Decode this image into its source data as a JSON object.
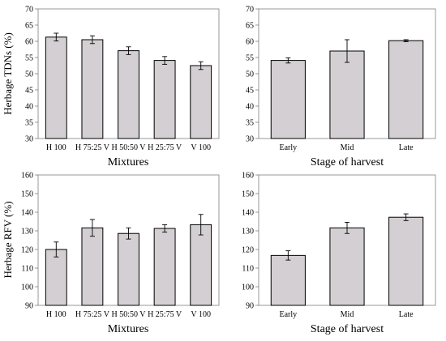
{
  "chart_data": [
    {
      "type": "bar",
      "xlabel": "Mixtures",
      "ylabel": "Herbage TDNs (%)",
      "categories": [
        "H 100",
        "H 75:25 V",
        "H 50:50 V",
        "H 25:75 V",
        "V 100"
      ],
      "values": [
        61.3,
        60.5,
        57.1,
        54.1,
        52.5
      ],
      "errors": [
        1.2,
        1.2,
        1.2,
        1.2,
        1.2
      ],
      "ylim": [
        30,
        70
      ],
      "yticks": [
        30,
        35,
        40,
        45,
        50,
        55,
        60,
        65,
        70
      ],
      "bar_color": "#d4cfd2",
      "grid": false
    },
    {
      "type": "bar",
      "xlabel": "Stage of harvest",
      "ylabel": "",
      "categories": [
        "Early",
        "Mid",
        "Late"
      ],
      "values": [
        54.1,
        57.0,
        60.2
      ],
      "errors": [
        0.8,
        3.5,
        0.3
      ],
      "ylim": [
        30,
        70
      ],
      "yticks": [
        30,
        35,
        40,
        45,
        50,
        55,
        60,
        65,
        70
      ],
      "bar_color": "#d4cfd2",
      "grid": false
    },
    {
      "type": "bar",
      "xlabel": "Mixtures",
      "ylabel": "Herbage RFV (%)",
      "categories": [
        "H 100",
        "H 75:25 V",
        "H 50:50 V",
        "H 25:75 V",
        "V 100"
      ],
      "values": [
        120.0,
        131.6,
        128.6,
        131.3,
        133.3
      ],
      "errors": [
        4.0,
        4.5,
        3.0,
        2.0,
        5.5
      ],
      "ylim": [
        90,
        160
      ],
      "yticks": [
        90,
        100,
        110,
        120,
        130,
        140,
        150,
        160
      ],
      "bar_color": "#d4cfd2",
      "grid": false
    },
    {
      "type": "bar",
      "xlabel": "Stage of harvest",
      "ylabel": "",
      "categories": [
        "Early",
        "Mid",
        "Late"
      ],
      "values": [
        116.8,
        131.6,
        137.3
      ],
      "errors": [
        2.5,
        3.0,
        1.8
      ],
      "ylim": [
        90,
        160
      ],
      "yticks": [
        90,
        100,
        110,
        120,
        130,
        140,
        150,
        160
      ],
      "bar_color": "#d4cfd2",
      "grid": false
    }
  ]
}
